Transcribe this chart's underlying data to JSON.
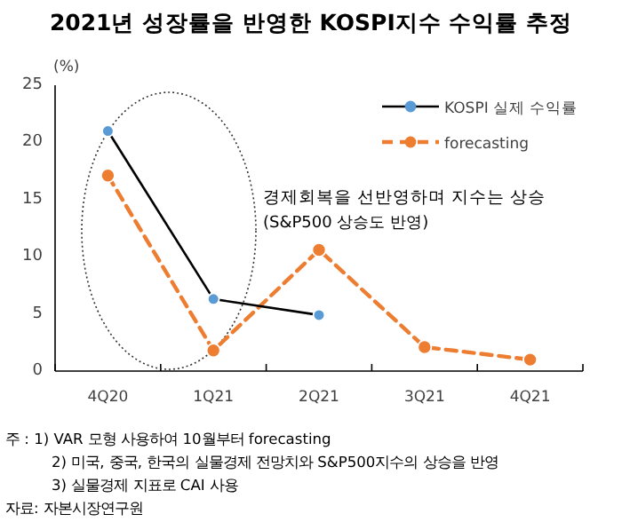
{
  "chart_data": {
    "type": "line",
    "title": "2021년 성장률을 반영한 KOSPI지수 수익률 추정",
    "ylabel": "(%)",
    "categories": [
      "4Q20",
      "1Q21",
      "2Q21",
      "3Q21",
      "4Q21"
    ],
    "series": [
      {
        "name": "KOSPI 실제 수익률",
        "color": "#000000",
        "line_style": "solid",
        "marker": "none",
        "values": [
          21.0,
          6.3,
          4.9,
          null,
          null
        ]
      },
      {
        "type": "scatter",
        "color": "#5b9bd5",
        "marker": "circle",
        "values": [
          21.0,
          6.3,
          4.9,
          null,
          null
        ]
      },
      {
        "name": "forecasting",
        "color": "#ed7d31",
        "line_style": "dashed",
        "marker": "circle",
        "values": [
          17.1,
          1.8,
          10.6,
          2.1,
          1.0
        ]
      }
    ],
    "ylim": [
      0,
      25
    ],
    "yticks": [
      0,
      5,
      10,
      15,
      20,
      25
    ],
    "legend": "top right",
    "grid": false,
    "annotations": [
      "경제회복을 선반영하며 지수는 상승",
      "(S&P500 상승도 반영)",
      "주   : 1) VAR 모형 사용하여 10월부터 forecasting",
      "2) 미국, 중국, 한국의 실물경제 전망치와 S&P500지수의 상승을 반영",
      "3) 실물경제 지표로 CAI 사용",
      "자료: 자본시장연구원"
    ]
  }
}
